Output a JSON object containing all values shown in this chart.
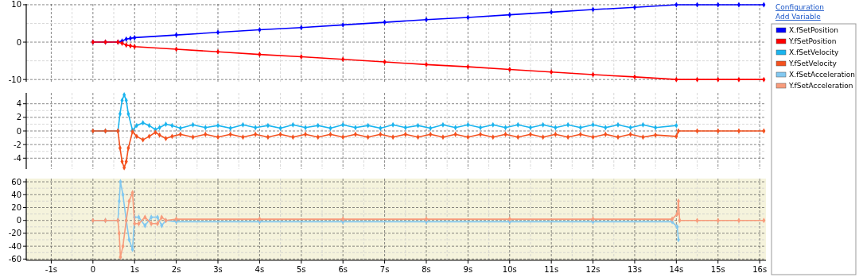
{
  "chart_data": [
    {
      "type": "line",
      "marker": "diamond",
      "line_style": "solid",
      "grid": true,
      "legend": "right",
      "tick_labels": "y",
      "annotations": [
        "Configuration",
        "Add Variable"
      ],
      "xlim": [
        -1.6,
        16.15
      ],
      "xticks": [
        {
          "value": -1,
          "label": null
        },
        {
          "value": 0,
          "label": null
        },
        {
          "value": 1,
          "label": null
        },
        {
          "value": 2,
          "label": null
        },
        {
          "value": 3,
          "label": null
        },
        {
          "value": 4,
          "label": null
        },
        {
          "value": 5,
          "label": null
        },
        {
          "value": 6,
          "label": null
        },
        {
          "value": 7,
          "label": null
        },
        {
          "value": 8,
          "label": null
        },
        {
          "value": 9,
          "label": null
        },
        {
          "value": 10,
          "label": null
        },
        {
          "value": 11,
          "label": null
        },
        {
          "value": 12,
          "label": null
        },
        {
          "value": 13,
          "label": null
        },
        {
          "value": 14,
          "label": null
        },
        {
          "value": 15,
          "label": null
        },
        {
          "value": 16,
          "label": null
        }
      ],
      "ylim": [
        -10.6,
        10.2
      ],
      "yticks": [
        -10,
        0,
        10
      ],
      "series": [
        {
          "name": "X.fSetPosition",
          "color": "#0000ff",
          "x": [
            0,
            0.3,
            0.6,
            0.7,
            0.8,
            0.9,
            1,
            2,
            3,
            4,
            5,
            6,
            7,
            8,
            9,
            10,
            11,
            12,
            13,
            14,
            14.5,
            15,
            15.5,
            16.1
          ],
          "values": [
            0,
            0,
            0,
            0.3,
            0.8,
            1.0,
            1.2,
            1.9,
            2.6,
            3.3,
            3.9,
            4.6,
            5.3,
            6.0,
            6.6,
            7.3,
            8.0,
            8.7,
            9.3,
            10,
            10,
            10,
            10,
            10
          ]
        },
        {
          "name": "Y.fSetPosition",
          "color": "#ff0000",
          "x": [
            0,
            0.3,
            0.6,
            0.7,
            0.8,
            0.9,
            1,
            2,
            3,
            4,
            5,
            6,
            7,
            8,
            9,
            10,
            11,
            12,
            13,
            14,
            14.5,
            15,
            15.5,
            16.1
          ],
          "values": [
            0,
            0,
            0,
            -0.3,
            -0.8,
            -1.0,
            -1.2,
            -1.9,
            -2.6,
            -3.3,
            -3.9,
            -4.6,
            -5.3,
            -6.0,
            -6.6,
            -7.3,
            -8.0,
            -8.7,
            -9.3,
            -10,
            -10,
            -10,
            -10,
            -10
          ]
        }
      ]
    },
    {
      "type": "line",
      "marker": "diamond",
      "line_style": "solid",
      "grid": true,
      "legend": "right",
      "tick_labels": "y",
      "xlim": [
        -1.6,
        16.15
      ],
      "xticks": [
        {
          "value": -1,
          "label": null
        },
        {
          "value": 0,
          "label": null
        },
        {
          "value": 1,
          "label": null
        },
        {
          "value": 2,
          "label": null
        },
        {
          "value": 3,
          "label": null
        },
        {
          "value": 4,
          "label": null
        },
        {
          "value": 5,
          "label": null
        },
        {
          "value": 6,
          "label": null
        },
        {
          "value": 7,
          "label": null
        },
        {
          "value": 8,
          "label": null
        },
        {
          "value": 9,
          "label": null
        },
        {
          "value": 10,
          "label": null
        },
        {
          "value": 11,
          "label": null
        },
        {
          "value": 12,
          "label": null
        },
        {
          "value": 13,
          "label": null
        },
        {
          "value": 14,
          "label": null
        },
        {
          "value": 15,
          "label": null
        },
        {
          "value": 16,
          "label": null
        }
      ],
      "ylim": [
        -5.6,
        5.6
      ],
      "yticks": [
        -4,
        -2,
        0,
        2,
        4
      ],
      "series": [
        {
          "name": "X.fSetVelocity",
          "color": "#1ab4ee",
          "x": [
            0,
            0.3,
            0.6,
            0.65,
            0.7,
            0.75,
            0.8,
            0.85,
            0.95,
            1.05,
            1.2,
            1.35,
            1.5,
            1.6,
            1.75,
            1.9,
            2.1,
            2.4,
            2.7,
            3.0,
            3.3,
            3.6,
            3.9,
            4.2,
            4.5,
            4.8,
            5.1,
            5.4,
            5.7,
            6.0,
            6.3,
            6.6,
            6.9,
            7.2,
            7.5,
            7.8,
            8.1,
            8.4,
            8.7,
            9.0,
            9.3,
            9.6,
            9.9,
            10.2,
            10.5,
            10.8,
            11.1,
            11.4,
            11.7,
            12.0,
            12.3,
            12.6,
            12.9,
            13.2,
            13.5,
            14.0
          ],
          "values": [
            0,
            0,
            0,
            2.5,
            4.5,
            5.3,
            4.5,
            2.5,
            0.1,
            0.8,
            1.2,
            0.8,
            0.2,
            0.5,
            1.0,
            0.8,
            0.4,
            0.9,
            0.5,
            0.8,
            0.4,
            0.9,
            0.5,
            0.8,
            0.4,
            0.9,
            0.5,
            0.8,
            0.4,
            0.9,
            0.5,
            0.8,
            0.4,
            0.9,
            0.5,
            0.8,
            0.4,
            0.9,
            0.5,
            0.9,
            0.5,
            0.9,
            0.5,
            0.9,
            0.5,
            0.9,
            0.5,
            0.9,
            0.5,
            0.9,
            0.5,
            0.9,
            0.5,
            0.9,
            0.5,
            0.8
          ]
        },
        {
          "name": "Y.fSetVelocity",
          "color": "#f4511e",
          "x": [
            0,
            0.3,
            0.6,
            0.65,
            0.7,
            0.75,
            0.8,
            0.85,
            0.95,
            1.05,
            1.2,
            1.35,
            1.5,
            1.6,
            1.75,
            1.9,
            2.1,
            2.4,
            2.7,
            3.0,
            3.3,
            3.6,
            3.9,
            4.2,
            4.5,
            4.8,
            5.1,
            5.4,
            5.7,
            6.0,
            6.3,
            6.6,
            6.9,
            7.2,
            7.5,
            7.8,
            8.1,
            8.4,
            8.7,
            9.0,
            9.3,
            9.6,
            9.9,
            10.2,
            10.5,
            10.8,
            11.1,
            11.4,
            11.7,
            12.0,
            12.3,
            12.6,
            12.9,
            13.2,
            13.5,
            14.0,
            14.05,
            14.5,
            15,
            15.5,
            16.1
          ],
          "values": [
            0,
            0,
            0,
            -2.5,
            -4.5,
            -5.4,
            -4.5,
            -2.5,
            -0.1,
            -0.8,
            -1.3,
            -0.8,
            -0.2,
            -0.6,
            -1.1,
            -0.8,
            -0.5,
            -0.9,
            -0.5,
            -0.9,
            -0.5,
            -0.9,
            -0.5,
            -0.9,
            -0.5,
            -0.9,
            -0.5,
            -0.9,
            -0.5,
            -0.9,
            -0.5,
            -0.9,
            -0.5,
            -0.9,
            -0.5,
            -0.9,
            -0.5,
            -0.9,
            -0.5,
            -0.9,
            -0.5,
            -0.9,
            -0.5,
            -0.9,
            -0.5,
            -0.9,
            -0.5,
            -0.9,
            -0.5,
            -0.9,
            -0.5,
            -0.9,
            -0.5,
            -0.9,
            -0.6,
            -0.8,
            0,
            0,
            0,
            0,
            0
          ]
        }
      ]
    },
    {
      "type": "line",
      "marker": "diamond",
      "line_style": "solid",
      "grid": true,
      "legend": "right",
      "xlim": [
        -1.6,
        16.15
      ],
      "xticks": [
        {
          "value": -1,
          "label": "-1s"
        },
        {
          "value": 0,
          "label": "0"
        },
        {
          "value": 1,
          "label": "1s"
        },
        {
          "value": 2,
          "label": "2s"
        },
        {
          "value": 3,
          "label": "3s"
        },
        {
          "value": 4,
          "label": "4s"
        },
        {
          "value": 5,
          "label": "5s"
        },
        {
          "value": 6,
          "label": "6s"
        },
        {
          "value": 7,
          "label": "7s"
        },
        {
          "value": 8,
          "label": "8s"
        },
        {
          "value": 9,
          "label": "9s"
        },
        {
          "value": 10,
          "label": "10s"
        },
        {
          "value": 11,
          "label": "11s"
        },
        {
          "value": 12,
          "label": "12s"
        },
        {
          "value": 13,
          "label": "13s"
        },
        {
          "value": 14,
          "label": "14s"
        },
        {
          "value": 15,
          "label": "15s"
        },
        {
          "value": 16,
          "label": "16s"
        }
      ],
      "ylim": [
        -62,
        65
      ],
      "yticks": [
        -60,
        -40,
        -20,
        0,
        20,
        40,
        60
      ],
      "series": [
        {
          "name": "X.fSetAcceleration",
          "color": "#82c8f0",
          "x": [
            0,
            0.3,
            0.6,
            0.63,
            0.66,
            0.72,
            0.8,
            0.87,
            0.95,
            1.0,
            1.1,
            1.25,
            1.4,
            1.55,
            1.65,
            1.75,
            2,
            4,
            6,
            8,
            10,
            12,
            13.9,
            14.02,
            14.05
          ],
          "values": [
            0,
            0,
            0,
            30,
            60,
            40,
            0,
            -30,
            -45,
            5,
            5,
            -8,
            5,
            5,
            -8,
            0,
            -2,
            -2,
            -2,
            -2,
            -2,
            -2,
            -2,
            -10,
            -30
          ]
        },
        {
          "name": "Y.fSetAcceleration",
          "color": "#f89c7c",
          "x": [
            0,
            0.3,
            0.6,
            0.63,
            0.66,
            0.72,
            0.8,
            0.87,
            0.95,
            1.0,
            1.1,
            1.25,
            1.4,
            1.55,
            1.65,
            1.75,
            2,
            4,
            6,
            8,
            10,
            12,
            13.9,
            14.02,
            14.05,
            14.08,
            14.5,
            15,
            15.5,
            16.1
          ],
          "values": [
            0,
            0,
            0,
            -20,
            -57,
            -40,
            0,
            30,
            43,
            -5,
            -5,
            5,
            -5,
            -5,
            5,
            0,
            2,
            2,
            2,
            2,
            2,
            2,
            2,
            10,
            30,
            0,
            0,
            0,
            0,
            0
          ]
        }
      ]
    }
  ]
}
